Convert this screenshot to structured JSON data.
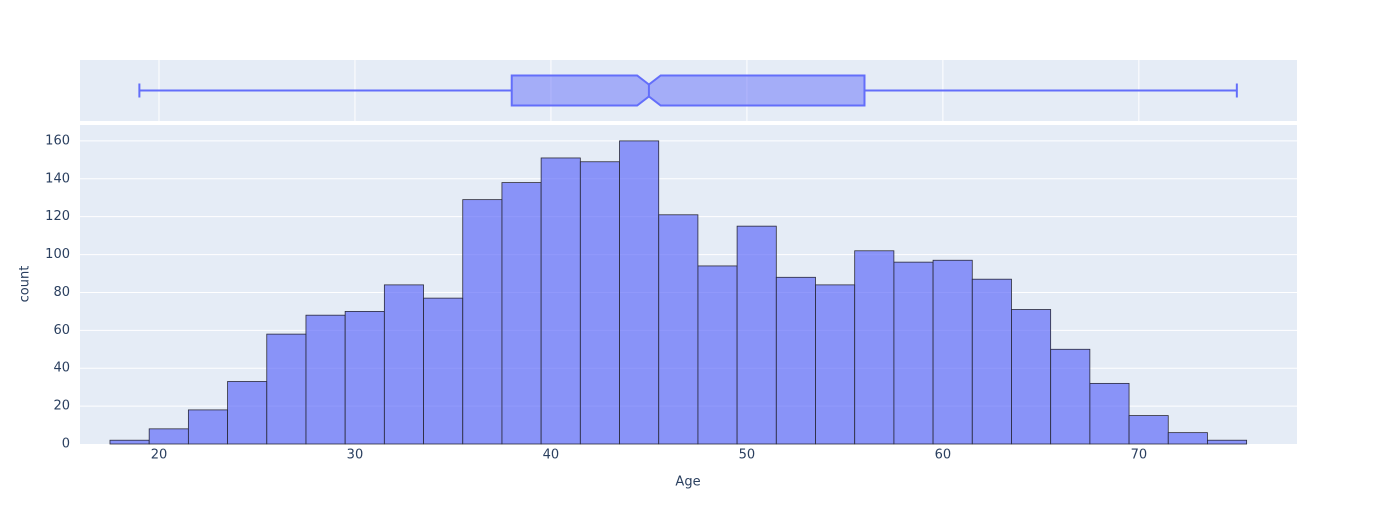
{
  "chart_data": {
    "type": "histogram",
    "x_label": "Age",
    "y_label": "count",
    "bins": [
      17.5,
      19.5,
      21.5,
      23.5,
      25.5,
      27.5,
      29.5,
      31.5,
      33.5,
      35.5,
      37.5,
      39.5,
      41.5,
      43.5,
      45.5,
      47.5,
      49.5,
      51.5,
      53.5,
      55.5,
      57.5,
      59.5,
      61.5,
      63.5,
      65.5,
      67.5,
      69.5,
      71.5,
      73.5,
      75.5
    ],
    "counts": [
      2,
      8,
      18,
      33,
      58,
      68,
      70,
      84,
      77,
      129,
      138,
      151,
      149,
      160,
      121,
      94,
      115,
      88,
      84,
      102,
      96,
      97,
      87,
      71,
      50,
      32,
      15,
      6,
      2
    ],
    "color": "#636efa",
    "xlim": [
      15.97,
      78.07
    ],
    "xticks": [
      20,
      30,
      40,
      50,
      60,
      70
    ],
    "ylim": [
      0,
      168.4
    ],
    "yticks": [
      0,
      20,
      40,
      60,
      80,
      100,
      120,
      140,
      160
    ],
    "grid": true,
    "marginal": {
      "type": "box",
      "lowerfence": 19,
      "q1": 38,
      "median": 45,
      "q3": 56,
      "upperfence": 75,
      "notch_low": 44.4,
      "notch_high": 45.6,
      "color": "#636efa",
      "grid": true
    }
  }
}
